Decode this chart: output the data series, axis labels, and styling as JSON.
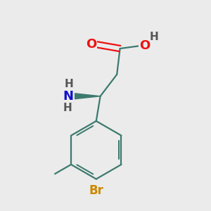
{
  "background_color": "#ebebeb",
  "atom_colors": {
    "C": "#3d7a6e",
    "O": "#ee1111",
    "N": "#1111cc",
    "Br": "#cc8800",
    "H": "#555555"
  },
  "bond_color": "#3d7a6e",
  "bond_width": 1.6,
  "font_size_atom": 13,
  "title": ""
}
